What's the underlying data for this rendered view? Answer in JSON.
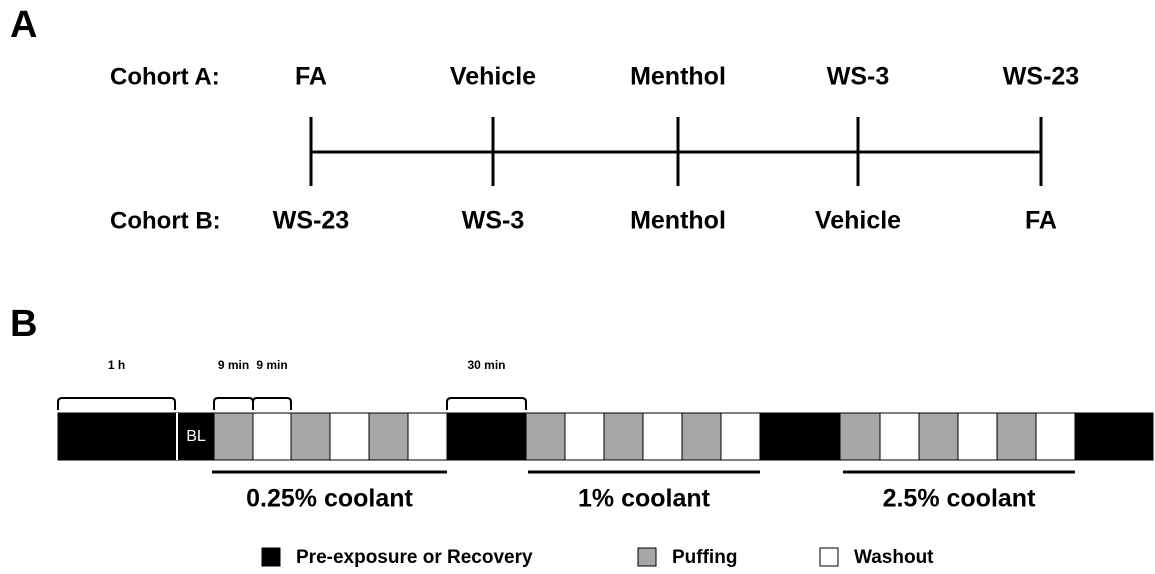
{
  "panel_a": {
    "label": "A",
    "cohorts": [
      {
        "label": "Cohort A:",
        "items": [
          "FA",
          "Vehicle",
          "Menthol",
          "WS-3",
          "WS-23"
        ]
      },
      {
        "label": "Cohort B:",
        "items": [
          "WS-23",
          "WS-3",
          "Menthol",
          "Vehicle",
          "FA"
        ]
      }
    ]
  },
  "panel_b": {
    "label": "B",
    "brackets": [
      "1 h",
      "9 min",
      "9 min",
      "30 min"
    ],
    "baseline": "BL",
    "doses": [
      "0.25% coolant",
      "1% coolant",
      "2.5% coolant"
    ],
    "legend": [
      "Pre-exposure or Recovery",
      "Puffing",
      "Washout"
    ]
  }
}
